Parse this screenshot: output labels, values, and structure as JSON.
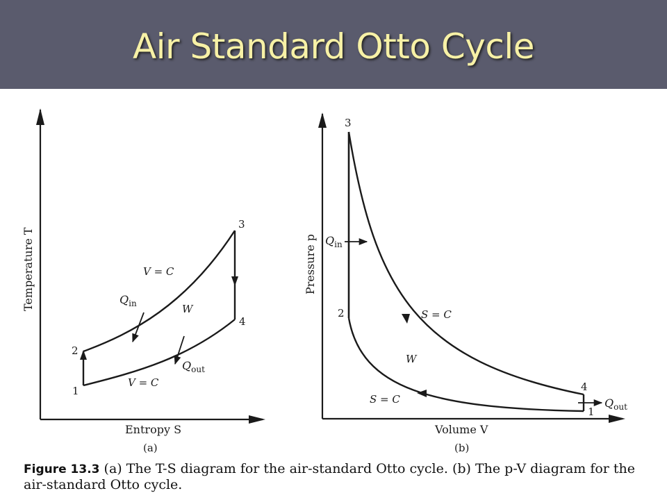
{
  "slide": {
    "title": "Air Standard Otto Cycle"
  },
  "diagram_a": {
    "y_axis_label": "Temperature T",
    "x_axis_label": "Entropy S",
    "sublabel": "(a)",
    "points": [
      "1",
      "2",
      "3",
      "4"
    ],
    "upper_curve_label": "V = C",
    "lower_curve_label": "V = C",
    "q_in": "Q",
    "q_in_sub": "in",
    "q_out": "Q",
    "q_out_sub": "out",
    "work": "W"
  },
  "diagram_b": {
    "y_axis_label": "Pressure p",
    "x_axis_label": "Volume V",
    "sublabel": "(b)",
    "points": [
      "1",
      "2",
      "3",
      "4"
    ],
    "upper_curve_label": "S = C",
    "lower_curve_label": "S = C",
    "q_in": "Q",
    "q_in_sub": "in",
    "q_out": "Q",
    "q_out_sub": "out",
    "work": "W"
  },
  "caption": {
    "figure_label": "Figure 13.3",
    "text": "(a) The T-S diagram for the air-standard Otto cycle. (b) The p-V diagram for the air-standard Otto cycle."
  }
}
